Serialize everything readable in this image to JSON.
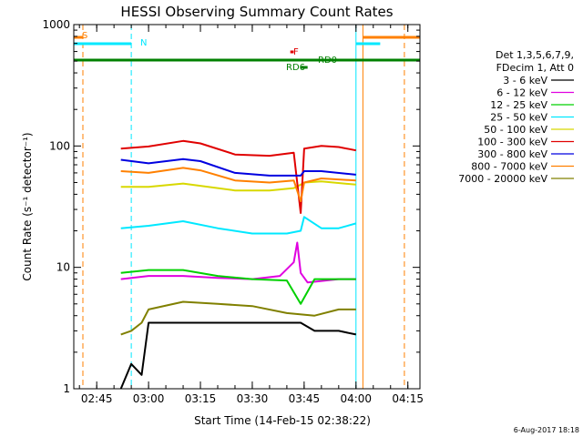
{
  "chart_data": {
    "type": "line",
    "title": "HESSI Observing Summary Count Rates",
    "xlabel": "Start Time (14-Feb-15 02:38:22)",
    "ylabel": "Count Rate (s⁻¹ detector⁻¹)",
    "x_ticks": [
      "02:45",
      "03:00",
      "03:15",
      "03:30",
      "03:45",
      "04:00",
      "04:15"
    ],
    "y_ticks": [
      "1",
      "10",
      "100",
      "1000"
    ],
    "xlim": [
      "02:38:22",
      "04:18:30"
    ],
    "ylim": [
      1,
      1000
    ],
    "yscale": "log",
    "legend_title": [
      "Det 1,3,5,6,7,9,",
      "FDecim 1, Att 0"
    ],
    "legend_placement": "right",
    "series": [
      {
        "name": "3 - 6 keV",
        "color": "#000000",
        "x": [
          "02:52",
          "02:55",
          "02:58",
          "03:00",
          "03:10",
          "03:20",
          "03:30",
          "03:40",
          "03:44",
          "03:48",
          "03:55",
          "04:00"
        ],
        "values": [
          1,
          1.6,
          1.3,
          3.5,
          3.5,
          3.5,
          3.5,
          3.5,
          3.5,
          3.0,
          3.0,
          2.8
        ]
      },
      {
        "name": "6 - 12 keV",
        "color": "#e000e0",
        "x": [
          "02:52",
          "03:00",
          "03:10",
          "03:20",
          "03:30",
          "03:38",
          "03:42",
          "03:43",
          "03:44",
          "03:46",
          "03:55",
          "04:00"
        ],
        "values": [
          8,
          8.5,
          8.5,
          8.2,
          8.0,
          8.5,
          11,
          16,
          9,
          7.5,
          8,
          8
        ]
      },
      {
        "name": "12 - 25 keV",
        "color": "#00d000",
        "x": [
          "02:52",
          "03:00",
          "03:10",
          "03:20",
          "03:30",
          "03:40",
          "03:44",
          "03:48",
          "03:55",
          "04:00"
        ],
        "values": [
          9,
          9.5,
          9.5,
          8.5,
          8.0,
          7.8,
          5,
          8,
          8,
          8
        ]
      },
      {
        "name": "25 - 50 keV",
        "color": "#00e8ff",
        "x": [
          "02:52",
          "03:00",
          "03:10",
          "03:20",
          "03:30",
          "03:40",
          "03:44",
          "03:45",
          "03:50",
          "03:55",
          "04:00"
        ],
        "values": [
          21,
          22,
          24,
          21,
          19,
          19,
          20,
          26,
          21,
          21,
          23
        ]
      },
      {
        "name": "50 - 100 keV",
        "color": "#d8d800",
        "x": [
          "02:52",
          "03:00",
          "03:10",
          "03:15",
          "03:25",
          "03:35",
          "03:42",
          "03:44",
          "03:45",
          "03:50",
          "04:00"
        ],
        "values": [
          46,
          46,
          49,
          47,
          43,
          43,
          45,
          48,
          50,
          51,
          48
        ]
      },
      {
        "name": "100 - 300 keV",
        "color": "#e00000",
        "x": [
          "02:52",
          "03:00",
          "03:10",
          "03:15",
          "03:25",
          "03:35",
          "03:42",
          "03:44",
          "03:45",
          "03:50",
          "03:55",
          "04:00"
        ],
        "values": [
          95,
          99,
          110,
          105,
          85,
          83,
          88,
          28,
          95,
          100,
          98,
          92
        ]
      },
      {
        "name": "300 - 800 keV",
        "color": "#0000e0",
        "x": [
          "02:52",
          "03:00",
          "03:10",
          "03:15",
          "03:25",
          "03:35",
          "03:42",
          "03:44",
          "03:45",
          "03:50",
          "04:00"
        ],
        "values": [
          77,
          72,
          78,
          75,
          60,
          57,
          57,
          57,
          62,
          62,
          58
        ]
      },
      {
        "name": "800 - 7000 keV",
        "color": "#ff8000",
        "x": [
          "02:52",
          "03:00",
          "03:10",
          "03:15",
          "03:25",
          "03:35",
          "03:42",
          "03:44",
          "03:45",
          "03:50",
          "04:00"
        ],
        "values": [
          62,
          60,
          66,
          63,
          52,
          50,
          52,
          35,
          50,
          54,
          52
        ]
      },
      {
        "name": "7000 - 20000 keV",
        "color": "#808000",
        "x": [
          "02:52",
          "02:55",
          "02:58",
          "03:00",
          "03:10",
          "03:20",
          "03:30",
          "03:40",
          "03:48",
          "03:55",
          "04:00"
        ],
        "values": [
          2.8,
          3.0,
          3.5,
          4.5,
          5.2,
          5.0,
          4.8,
          4.2,
          4.0,
          4.5,
          4.5
        ]
      }
    ],
    "annotations": [
      {
        "text": "S",
        "color": "#ff8000"
      },
      {
        "text": "N",
        "color": "#00e8ff"
      },
      {
        "text": "F",
        "color": "#e00000"
      },
      {
        "text": "RD0",
        "color": "#008000"
      },
      {
        "text": "RD6",
        "color": "#008000"
      }
    ],
    "flag_bars": [
      {
        "label": "S",
        "color": "#ff8000",
        "from": "02:38:22",
        "to": "02:41"
      },
      {
        "label": "N",
        "color": "#00e8ff",
        "from": "02:38:22",
        "to": "02:55"
      },
      {
        "label": "N",
        "color": "#00e8ff",
        "from": "04:00",
        "to": "04:07"
      },
      {
        "label": "S",
        "color": "#ff8000",
        "from": "04:02",
        "to": "04:18:30"
      },
      {
        "label": "RD0",
        "color": "#008000",
        "from": "02:38:22",
        "to": "04:18:30"
      },
      {
        "label": "RD6",
        "color": "#008000",
        "from": "03:44",
        "to": "03:46"
      },
      {
        "label": "F",
        "color": "#e00000",
        "from": "03:41",
        "to": "03:42"
      }
    ],
    "vlines": [
      {
        "x": "02:38:22",
        "color": "#00e8ff",
        "style": "solid"
      },
      {
        "x": "02:41",
        "color": "#ff8000",
        "style": "dashed"
      },
      {
        "x": "02:55",
        "color": "#00e8ff",
        "style": "dashed"
      },
      {
        "x": "04:00",
        "color": "#00e8ff",
        "style": "solid"
      },
      {
        "x": "04:02",
        "color": "#ff8000",
        "style": "solid"
      },
      {
        "x": "04:14",
        "color": "#ff8000",
        "style": "dashed"
      },
      {
        "x": "04:18:30",
        "color": "#00e8ff",
        "style": "solid"
      }
    ]
  },
  "footer": {
    "timestamp": "6-Aug-2017 18:18"
  }
}
